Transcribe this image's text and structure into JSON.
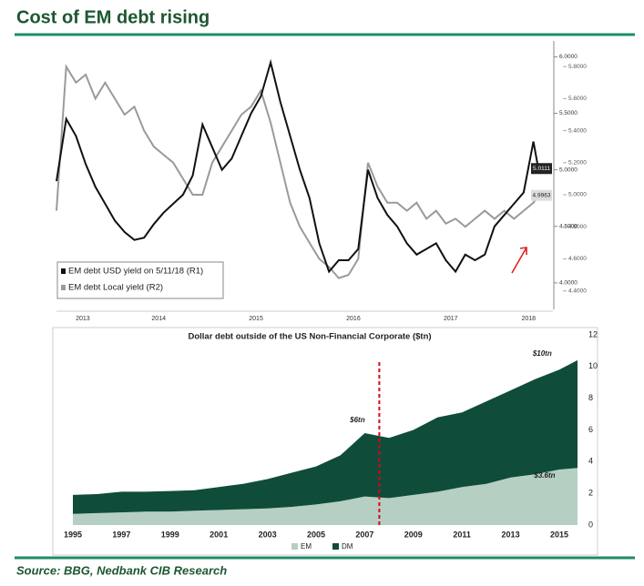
{
  "header": {
    "title": "Cost of EM debt rising"
  },
  "footer": {
    "source": "Source: BBG, Nedbank CIB Research"
  },
  "chart_data": [
    {
      "type": "line",
      "x": [
        2013.45,
        2013.55,
        2013.65,
        2013.75,
        2013.85,
        2013.95,
        2014.05,
        2014.15,
        2014.25,
        2014.35,
        2014.45,
        2014.55,
        2014.65,
        2014.75,
        2014.85,
        2014.95,
        2015.05,
        2015.15,
        2015.25,
        2015.35,
        2015.45,
        2015.55,
        2015.65,
        2015.75,
        2015.85,
        2015.95,
        2016.05,
        2016.15,
        2016.25,
        2016.35,
        2016.45,
        2016.55,
        2016.65,
        2016.75,
        2016.85,
        2016.95,
        2017.05,
        2017.15,
        2017.25,
        2017.35,
        2017.45,
        2017.55,
        2017.65,
        2017.75,
        2017.85,
        2017.95,
        2018.05,
        2018.15,
        2018.25,
        2018.35,
        2018.4
      ],
      "xlim": [
        2013.45,
        2018.55
      ],
      "xticks": [
        {
          "value": 2013.72,
          "label": "2013"
        },
        {
          "value": 2014.5,
          "label": "2014"
        },
        {
          "value": 2015.5,
          "label": "2015"
        },
        {
          "value": 2016.5,
          "label": "2016"
        },
        {
          "value": 2017.5,
          "label": "2017"
        },
        {
          "value": 2018.3,
          "label": "2018"
        }
      ],
      "ylim": [
        3.83,
        6.14
      ],
      "yticks": [
        {
          "value": 4,
          "label": "4.0000"
        },
        {
          "value": 4.5,
          "label": "4.5000"
        },
        {
          "value": 5,
          "label": "5.0000"
        },
        {
          "value": 5.5,
          "label": "5.5000"
        },
        {
          "value": 6,
          "label": "6.0000"
        }
      ],
      "y2lim": [
        4.33,
        5.96
      ],
      "y2ticks": [
        {
          "value": 4.4,
          "label": "4.4000"
        },
        {
          "value": 4.6,
          "label": "4.6000"
        },
        {
          "value": 4.8,
          "label": "4.8000"
        },
        {
          "value": 5,
          "label": "5.0000"
        },
        {
          "value": 5.2,
          "label": "5.2000"
        },
        {
          "value": 5.4,
          "label": "5.4000"
        },
        {
          "value": 5.6,
          "label": "5.6000"
        },
        {
          "value": 5.8,
          "label": "5.8000"
        }
      ],
      "legend": "bottom-left",
      "series": [
        {
          "name": "EM debt USD yield on 5/11/18 (R1)",
          "color": "#111111",
          "values": [
            4.9,
            5.45,
            5.3,
            5.05,
            4.85,
            4.7,
            4.55,
            4.45,
            4.38,
            4.4,
            4.52,
            4.62,
            4.7,
            4.78,
            4.95,
            5.4,
            5.2,
            5.0,
            5.1,
            5.3,
            5.5,
            5.65,
            5.95,
            5.6,
            5.3,
            5.0,
            4.75,
            4.35,
            4.1,
            4.2,
            4.2,
            4.3,
            5.0,
            4.75,
            4.6,
            4.5,
            4.35,
            4.25,
            4.3,
            4.35,
            4.2,
            4.1,
            4.25,
            4.2,
            4.25,
            4.5,
            4.6,
            4.7,
            4.8,
            5.25,
            5.0111
          ]
        },
        {
          "name": "EM debt Local yield (R2)",
          "color": "#9a9a9a",
          "axis": "y2",
          "values": [
            4.9,
            5.8,
            5.7,
            5.75,
            5.6,
            5.7,
            5.6,
            5.5,
            5.55,
            5.4,
            5.3,
            5.25,
            5.2,
            5.1,
            5.0,
            5.0,
            5.2,
            5.3,
            5.4,
            5.5,
            5.55,
            5.65,
            5.45,
            5.2,
            4.95,
            4.8,
            4.7,
            4.6,
            4.55,
            4.48,
            4.5,
            4.6,
            5.2,
            5.05,
            4.95,
            4.95,
            4.9,
            4.95,
            4.85,
            4.9,
            4.82,
            4.85,
            4.8,
            4.85,
            4.9,
            4.85,
            4.9,
            4.85,
            4.9,
            4.95,
            4.9963
          ]
        }
      ]
    },
    {
      "type": "area",
      "stacked": true,
      "title": "Dollar debt outside of the US Non-Financial Corporate ($tn)",
      "x": [
        1995,
        1996,
        1997,
        1998,
        1999,
        2000,
        2001,
        2002,
        2003,
        2004,
        2005,
        2006,
        2007,
        2008,
        2009,
        2010,
        2011,
        2012,
        2013,
        2014,
        2015,
        2015.75
      ],
      "xlim": [
        1994.4,
        2016.2
      ],
      "xticks": [
        1995,
        1997,
        1999,
        2001,
        2003,
        2005,
        2007,
        2009,
        2011,
        2013,
        2015
      ],
      "ylim": [
        0,
        12
      ],
      "yticks": [
        0,
        2,
        4,
        6,
        8,
        10,
        12
      ],
      "legend": "bottom",
      "marker_x": 2007.6,
      "marker_color": "#e0001b",
      "annotations": [
        "$6tn",
        "$10tn",
        "$3.6tn"
      ],
      "series": [
        {
          "name": "EM",
          "color": "#b5cfc3",
          "values": [
            0.7,
            0.75,
            0.8,
            0.85,
            0.85,
            0.9,
            0.95,
            1.0,
            1.05,
            1.15,
            1.3,
            1.5,
            1.8,
            1.7,
            1.9,
            2.1,
            2.4,
            2.6,
            3.0,
            3.2,
            3.5,
            3.6
          ]
        },
        {
          "name": "DM",
          "color": "#0f4d3a",
          "values": [
            1.2,
            1.2,
            1.3,
            1.25,
            1.3,
            1.3,
            1.45,
            1.6,
            1.85,
            2.15,
            2.4,
            2.9,
            4.0,
            3.8,
            4.1,
            4.7,
            4.7,
            5.2,
            5.5,
            6.0,
            6.3,
            6.8
          ]
        }
      ]
    }
  ]
}
